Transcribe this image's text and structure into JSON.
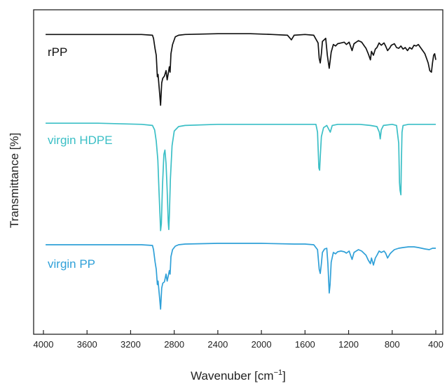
{
  "chart_data": {
    "type": "line",
    "xlabel": "Wavenuber [cm",
    "xlabel_sup": "−1",
    "xlabel_close": "]",
    "ylabel": "Transmittance [%]",
    "xlim": [
      4000,
      400
    ],
    "x_reversed": true,
    "x_ticks": [
      4000,
      3600,
      3200,
      2800,
      2400,
      2000,
      1600,
      1200,
      800,
      400
    ],
    "y_ticks_shown": false,
    "grid": false,
    "legend": "inline labels",
    "series": [
      {
        "name": "rPP",
        "color": "#111111",
        "points": [
          [
            3980,
            3
          ],
          [
            3500,
            3
          ],
          [
            3100,
            3
          ],
          [
            3000,
            4
          ],
          [
            2990,
            8
          ],
          [
            2975,
            22
          ],
          [
            2965,
            30
          ],
          [
            2955,
            58
          ],
          [
            2948,
            55
          ],
          [
            2935,
            78
          ],
          [
            2925,
            95
          ],
          [
            2915,
            66
          ],
          [
            2905,
            60
          ],
          [
            2890,
            57
          ],
          [
            2875,
            50
          ],
          [
            2865,
            62
          ],
          [
            2855,
            54
          ],
          [
            2845,
            45
          ],
          [
            2838,
            52
          ],
          [
            2830,
            28
          ],
          [
            2815,
            16
          ],
          [
            2790,
            6
          ],
          [
            2760,
            4
          ],
          [
            2700,
            3
          ],
          [
            2400,
            2
          ],
          [
            2100,
            2
          ],
          [
            1900,
            3
          ],
          [
            1760,
            4
          ],
          [
            1725,
            10
          ],
          [
            1700,
            4
          ],
          [
            1600,
            3
          ],
          [
            1520,
            4
          ],
          [
            1480,
            14
          ],
          [
            1470,
            34
          ],
          [
            1460,
            40
          ],
          [
            1450,
            28
          ],
          [
            1440,
            12
          ],
          [
            1425,
            10
          ],
          [
            1410,
            8
          ],
          [
            1395,
            30
          ],
          [
            1378,
            47
          ],
          [
            1370,
            38
          ],
          [
            1360,
            26
          ],
          [
            1340,
            16
          ],
          [
            1320,
            18
          ],
          [
            1300,
            15
          ],
          [
            1270,
            14
          ],
          [
            1240,
            13
          ],
          [
            1220,
            16
          ],
          [
            1195,
            13
          ],
          [
            1168,
            24
          ],
          [
            1150,
            15
          ],
          [
            1110,
            11
          ],
          [
            1080,
            13
          ],
          [
            1060,
            17
          ],
          [
            1040,
            21
          ],
          [
            1020,
            28
          ],
          [
            1000,
            36
          ],
          [
            990,
            25
          ],
          [
            972,
            30
          ],
          [
            955,
            22
          ],
          [
            940,
            20
          ],
          [
            920,
            14
          ],
          [
            900,
            17
          ],
          [
            875,
            14
          ],
          [
            860,
            18
          ],
          [
            842,
            24
          ],
          [
            820,
            20
          ],
          [
            808,
            17
          ],
          [
            780,
            15
          ],
          [
            760,
            20
          ],
          [
            740,
            21
          ],
          [
            720,
            18
          ],
          [
            700,
            22
          ],
          [
            680,
            20
          ],
          [
            660,
            24
          ],
          [
            640,
            20
          ],
          [
            620,
            22
          ],
          [
            600,
            17
          ],
          [
            580,
            18
          ],
          [
            560,
            16
          ],
          [
            540,
            20
          ],
          [
            520,
            24
          ],
          [
            500,
            28
          ],
          [
            485,
            34
          ],
          [
            470,
            40
          ],
          [
            455,
            50
          ],
          [
            440,
            52
          ],
          [
            430,
            40
          ],
          [
            420,
            30
          ],
          [
            410,
            28
          ],
          [
            400,
            36
          ]
        ]
      },
      {
        "name": "virgin HDPE",
        "color": "#3bbfc6",
        "points": [
          [
            3980,
            2
          ],
          [
            3500,
            2
          ],
          [
            3100,
            3
          ],
          [
            3000,
            4
          ],
          [
            2980,
            8
          ],
          [
            2965,
            18
          ],
          [
            2950,
            35
          ],
          [
            2940,
            62
          ],
          [
            2930,
            85
          ],
          [
            2925,
            98
          ],
          [
            2918,
            92
          ],
          [
            2908,
            58
          ],
          [
            2895,
            30
          ],
          [
            2885,
            26
          ],
          [
            2875,
            38
          ],
          [
            2865,
            62
          ],
          [
            2855,
            90
          ],
          [
            2850,
            97
          ],
          [
            2845,
            85
          ],
          [
            2835,
            52
          ],
          [
            2820,
            22
          ],
          [
            2800,
            9
          ],
          [
            2760,
            5
          ],
          [
            2700,
            4
          ],
          [
            2400,
            3
          ],
          [
            2000,
            3
          ],
          [
            1700,
            3
          ],
          [
            1500,
            3
          ],
          [
            1485,
            10
          ],
          [
            1473,
            42
          ],
          [
            1466,
            44
          ],
          [
            1460,
            32
          ],
          [
            1450,
            14
          ],
          [
            1430,
            6
          ],
          [
            1400,
            4
          ],
          [
            1368,
            10
          ],
          [
            1350,
            4
          ],
          [
            1300,
            3
          ],
          [
            1100,
            3
          ],
          [
            1000,
            4
          ],
          [
            940,
            5
          ],
          [
            918,
            10
          ],
          [
            910,
            16
          ],
          [
            900,
            8
          ],
          [
            880,
            4
          ],
          [
            800,
            3
          ],
          [
            760,
            4
          ],
          [
            740,
            20
          ],
          [
            733,
            55
          ],
          [
            728,
            62
          ],
          [
            720,
            66
          ],
          [
            716,
            40
          ],
          [
            710,
            10
          ],
          [
            700,
            4
          ],
          [
            650,
            3
          ],
          [
            500,
            3
          ],
          [
            400,
            3
          ]
        ]
      },
      {
        "name": "virgin PP",
        "color": "#2fa0d8",
        "points": [
          [
            3980,
            3
          ],
          [
            3500,
            3
          ],
          [
            3100,
            3
          ],
          [
            3000,
            4
          ],
          [
            2990,
            10
          ],
          [
            2975,
            28
          ],
          [
            2965,
            38
          ],
          [
            2955,
            60
          ],
          [
            2948,
            55
          ],
          [
            2935,
            78
          ],
          [
            2925,
            95
          ],
          [
            2915,
            65
          ],
          [
            2905,
            58
          ],
          [
            2890,
            56
          ],
          [
            2875,
            45
          ],
          [
            2865,
            55
          ],
          [
            2855,
            48
          ],
          [
            2845,
            40
          ],
          [
            2838,
            45
          ],
          [
            2830,
            20
          ],
          [
            2815,
            10
          ],
          [
            2790,
            5
          ],
          [
            2760,
            3
          ],
          [
            2700,
            2
          ],
          [
            2400,
            1
          ],
          [
            2000,
            1
          ],
          [
            1700,
            2
          ],
          [
            1600,
            2
          ],
          [
            1520,
            3
          ],
          [
            1485,
            10
          ],
          [
            1470,
            38
          ],
          [
            1460,
            44
          ],
          [
            1450,
            30
          ],
          [
            1440,
            14
          ],
          [
            1420,
            9
          ],
          [
            1400,
            8
          ],
          [
            1390,
            30
          ],
          [
            1378,
            72
          ],
          [
            1370,
            60
          ],
          [
            1360,
            28
          ],
          [
            1340,
            14
          ],
          [
            1320,
            16
          ],
          [
            1300,
            13
          ],
          [
            1270,
            12
          ],
          [
            1240,
            13
          ],
          [
            1220,
            15
          ],
          [
            1195,
            12
          ],
          [
            1168,
            24
          ],
          [
            1150,
            14
          ],
          [
            1110,
            10
          ],
          [
            1080,
            12
          ],
          [
            1060,
            15
          ],
          [
            1040,
            18
          ],
          [
            1020,
            25
          ],
          [
            1000,
            30
          ],
          [
            990,
            22
          ],
          [
            972,
            32
          ],
          [
            955,
            22
          ],
          [
            940,
            18
          ],
          [
            920,
            12
          ],
          [
            900,
            14
          ],
          [
            875,
            12
          ],
          [
            860,
            15
          ],
          [
            842,
            22
          ],
          [
            820,
            16
          ],
          [
            808,
            14
          ],
          [
            780,
            10
          ],
          [
            740,
            8
          ],
          [
            700,
            7
          ],
          [
            650,
            6
          ],
          [
            600,
            6
          ],
          [
            560,
            7
          ],
          [
            530,
            8
          ],
          [
            500,
            9
          ],
          [
            460,
            10
          ],
          [
            430,
            8
          ],
          [
            400,
            8
          ]
        ]
      }
    ]
  }
}
